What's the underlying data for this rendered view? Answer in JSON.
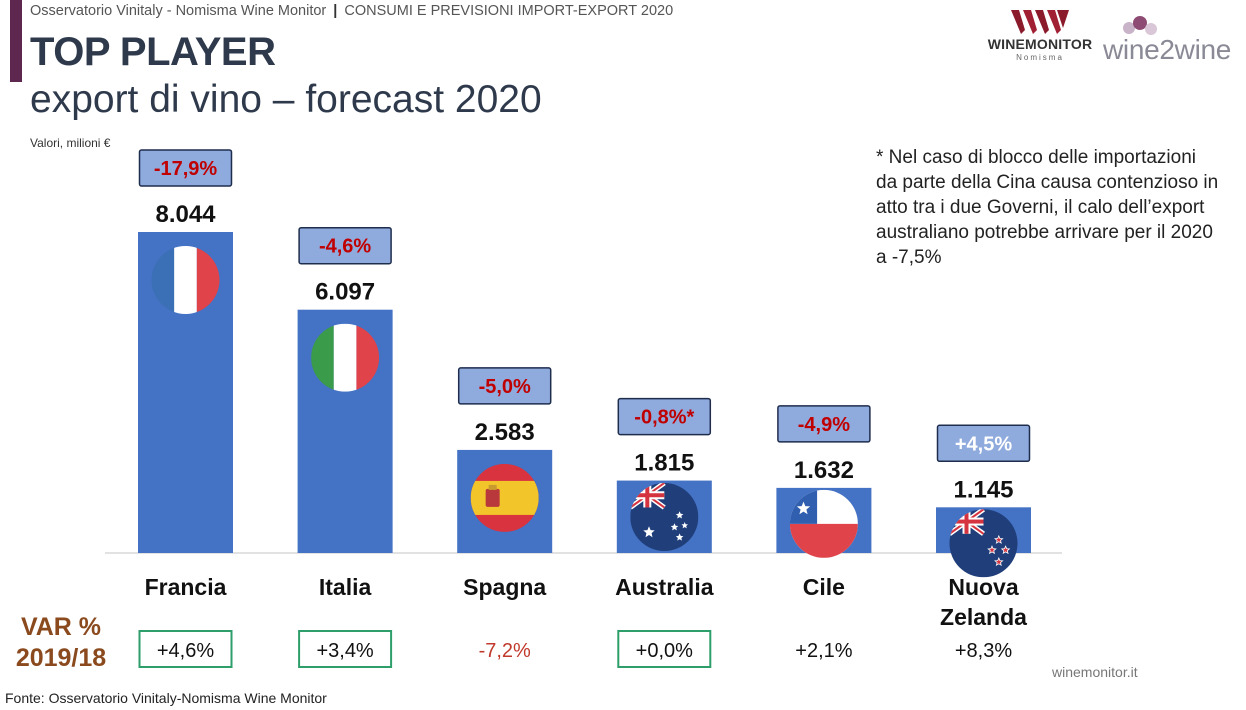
{
  "header": {
    "source_left": "Osservatorio Vinitaly - Nomisma Wine Monitor",
    "separator": "|",
    "source_right": "CONSUMI E PREVISIONI IMPORT-EXPORT 2020"
  },
  "title": "TOP PLAYER",
  "subtitle": "export di vino – forecast 2020",
  "logos": {
    "winemonitor_name": "WINEMONITOR",
    "winemonitor_sub": "Nomisma",
    "wine2wine": "wine2wine"
  },
  "note": "* Nel caso di blocco delle importazioni da parte della Cina causa contenzioso in atto tra i due Governi, il calo dell’export australiano potrebbe arrivare per il 2020 a -7,5%",
  "var_label": "VAR % 2019/18",
  "footer": {
    "source": "Fonte: Osservatorio Vinitaly-Nomisma Wine Monitor",
    "site": "winemonitor.it"
  },
  "colors": {
    "bar": "#4472c4",
    "forecast_box": "#8faadc",
    "negative": "#c00000",
    "positive_white": "#ffffff",
    "var_box_border": "#2e9e6b",
    "var_negative": "#c0392b",
    "axis": "#d9d9d9"
  },
  "chart_data": {
    "type": "bar",
    "units_label": "Valori, milioni €",
    "categories": [
      "Francia",
      "Italia",
      "Spagna",
      "Australia",
      "Cile",
      "Nuova Zelanda"
    ],
    "values": [
      8044,
      6097,
      2583,
      1815,
      1632,
      1145
    ],
    "value_labels": [
      "8.044",
      "6.097",
      "2.583",
      "1.815",
      "1.632",
      "1.145"
    ],
    "forecast_change": [
      "-17,9%",
      "-4,6%",
      "-5,0%",
      "-0,8%*",
      "-4,9%",
      "+4,5%"
    ],
    "var_2019_18": [
      "+4,6%",
      "+3,4%",
      "-7,2%",
      "+0,0%",
      "+2,1%",
      "+8,3%"
    ],
    "var_boxed": [
      true,
      true,
      false,
      true,
      false,
      false
    ],
    "flags": [
      "france-flag",
      "italy-flag",
      "spain-flag",
      "australia-flag",
      "chile-flag",
      "new-zealand-flag"
    ]
  }
}
